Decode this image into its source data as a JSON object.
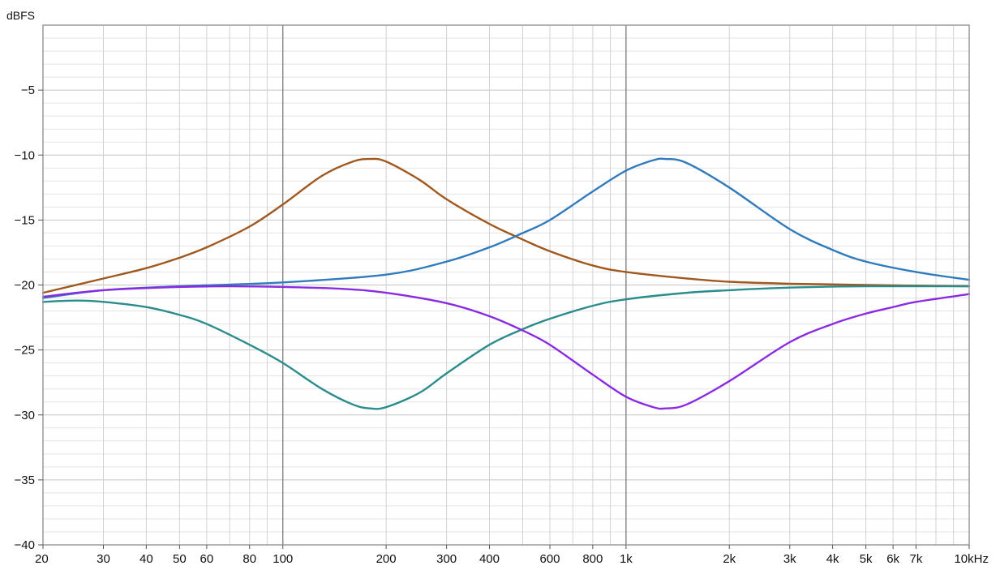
{
  "chart_data": {
    "type": "line",
    "title": "",
    "xlabel": "",
    "ylabel": "dBFS",
    "x_unit": "Hz",
    "x_scale": "log",
    "xlim": [
      20,
      10000
    ],
    "ylim": [
      -40,
      0
    ],
    "grid": true,
    "legend": "none",
    "x_tick_labels": [
      {
        "value": 20,
        "label": "20"
      },
      {
        "value": 30,
        "label": "30"
      },
      {
        "value": 40,
        "label": "40"
      },
      {
        "value": 50,
        "label": "50"
      },
      {
        "value": 60,
        "label": "60"
      },
      {
        "value": 80,
        "label": "80"
      },
      {
        "value": 100,
        "label": "100"
      },
      {
        "value": 200,
        "label": "200"
      },
      {
        "value": 300,
        "label": "300"
      },
      {
        "value": 400,
        "label": "400"
      },
      {
        "value": 600,
        "label": "600"
      },
      {
        "value": 800,
        "label": "800"
      },
      {
        "value": 1000,
        "label": "1k"
      },
      {
        "value": 2000,
        "label": "2k"
      },
      {
        "value": 3000,
        "label": "3k"
      },
      {
        "value": 4000,
        "label": "4k"
      },
      {
        "value": 5000,
        "label": "5k"
      },
      {
        "value": 6000,
        "label": "6k"
      },
      {
        "value": 7000,
        "label": "7k"
      },
      {
        "value": 10000,
        "label": "10kHz"
      }
    ],
    "y_tick_labels": [
      {
        "value": -5,
        "label": "−5"
      },
      {
        "value": -10,
        "label": "−10"
      },
      {
        "value": -15,
        "label": "−15"
      },
      {
        "value": -20,
        "label": "−20"
      },
      {
        "value": -25,
        "label": "−25"
      },
      {
        "value": -30,
        "label": "−30"
      },
      {
        "value": -35,
        "label": "−35"
      },
      {
        "value": -40,
        "label": "−40"
      }
    ],
    "series": [
      {
        "color": "#a0581e",
        "x": [
          20,
          30,
          40,
          50,
          60,
          80,
          100,
          130,
          160,
          180,
          200,
          250,
          300,
          400,
          500,
          600,
          800,
          1000,
          1500,
          2000,
          3000,
          5000,
          10000
        ],
        "y": [
          -20.6,
          -19.5,
          -18.7,
          -17.9,
          -17.1,
          -15.5,
          -13.8,
          -11.6,
          -10.5,
          -10.3,
          -10.5,
          -11.9,
          -13.4,
          -15.3,
          -16.5,
          -17.4,
          -18.5,
          -19.0,
          -19.5,
          -19.75,
          -19.9,
          -20.0,
          -20.1
        ]
      },
      {
        "color": "#2f7bbd",
        "x": [
          20,
          30,
          50,
          100,
          200,
          300,
          400,
          500,
          600,
          800,
          1000,
          1200,
          1300,
          1500,
          2000,
          3000,
          4000,
          5000,
          7000,
          10000
        ],
        "y": [
          -21.0,
          -20.4,
          -20.1,
          -19.8,
          -19.2,
          -18.2,
          -17.1,
          -16.0,
          -15.0,
          -12.8,
          -11.2,
          -10.4,
          -10.3,
          -10.6,
          -12.5,
          -15.7,
          -17.3,
          -18.2,
          -19.0,
          -19.6
        ]
      },
      {
        "color": "#2a8c8c",
        "x": [
          20,
          25,
          30,
          40,
          50,
          60,
          80,
          100,
          130,
          160,
          180,
          200,
          250,
          300,
          400,
          500,
          600,
          800,
          1000,
          1500,
          2000,
          3000,
          5000,
          10000
        ],
        "y": [
          -21.3,
          -21.2,
          -21.3,
          -21.7,
          -22.3,
          -23.0,
          -24.6,
          -26.0,
          -28.0,
          -29.2,
          -29.5,
          -29.4,
          -28.3,
          -26.8,
          -24.6,
          -23.4,
          -22.6,
          -21.6,
          -21.1,
          -20.6,
          -20.4,
          -20.2,
          -20.1,
          -20.1
        ]
      },
      {
        "color": "#8a2be2",
        "x": [
          20,
          30,
          50,
          70,
          100,
          150,
          200,
          300,
          400,
          500,
          600,
          800,
          1000,
          1200,
          1300,
          1500,
          2000,
          3000,
          4000,
          5000,
          6000,
          7000,
          10000
        ],
        "y": [
          -20.9,
          -20.4,
          -20.15,
          -20.1,
          -20.15,
          -20.3,
          -20.6,
          -21.4,
          -22.4,
          -23.5,
          -24.6,
          -26.9,
          -28.6,
          -29.4,
          -29.5,
          -29.2,
          -27.4,
          -24.4,
          -23.0,
          -22.2,
          -21.7,
          -21.3,
          -20.7
        ]
      }
    ]
  }
}
